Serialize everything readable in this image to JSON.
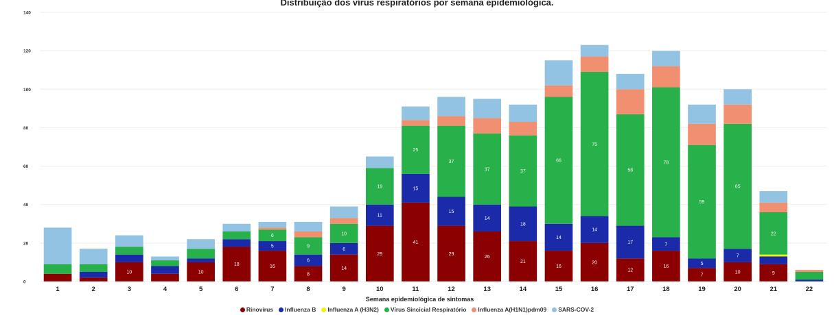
{
  "chart_data": {
    "type": "bar",
    "stacked": true,
    "title": "Distribuição dos vírus respiratórios por semana epidemiológica.",
    "xlabel": "Semana epidemiológica de sintomas",
    "ylabel": "",
    "ylim": [
      0,
      140
    ],
    "yticks": [
      0,
      20,
      40,
      60,
      80,
      100,
      120,
      140
    ],
    "categories": [
      "1",
      "2",
      "3",
      "4",
      "5",
      "6",
      "7",
      "8",
      "9",
      "10",
      "11",
      "12",
      "13",
      "14",
      "15",
      "16",
      "17",
      "18",
      "19",
      "20",
      "21",
      "22"
    ],
    "legend_position": "bottom",
    "series": [
      {
        "name": "Rinovírus",
        "color": "#8b0000",
        "values": [
          4,
          2,
          10,
          4,
          10,
          18,
          16,
          8,
          14,
          29,
          41,
          29,
          26,
          21,
          16,
          20,
          12,
          16,
          7,
          10,
          9,
          0
        ],
        "labels": [
          "",
          "",
          "10",
          "",
          "10",
          "18",
          "16",
          "8",
          "14",
          "29",
          "41",
          "29",
          "26",
          "21",
          "16",
          "20",
          "12",
          "16",
          "7",
          "10",
          "9",
          ""
        ]
      },
      {
        "name": "Influenza B",
        "color": "#1a2aa8",
        "values": [
          0,
          3,
          4,
          4,
          2,
          4,
          5,
          6,
          6,
          11,
          15,
          15,
          14,
          18,
          14,
          14,
          17,
          7,
          5,
          7,
          4,
          1
        ],
        "labels": [
          "",
          "",
          "",
          "",
          "",
          "",
          "5",
          "6",
          "6",
          "11",
          "15",
          "15",
          "14",
          "18",
          "14",
          "14",
          "17",
          "7",
          "5",
          "7",
          "",
          ""
        ]
      },
      {
        "name": "Influenza A (H3N2)",
        "color": "#f2f20a",
        "values": [
          0,
          0,
          0,
          0,
          0,
          0,
          0,
          0,
          0,
          0,
          0,
          0,
          0,
          0,
          0,
          0,
          0,
          0,
          0,
          0,
          1,
          0
        ],
        "labels": [
          "",
          "",
          "",
          "",
          "",
          "",
          "",
          "",
          "",
          "",
          "",
          "",
          "",
          "",
          "",
          "",
          "",
          "",
          "",
          "",
          "",
          ""
        ]
      },
      {
        "name": "Vírus Sincicial Respiratório",
        "color": "#28b04a",
        "values": [
          5,
          4,
          4,
          3,
          5,
          4,
          6,
          9,
          10,
          19,
          25,
          37,
          37,
          37,
          66,
          75,
          58,
          78,
          59,
          65,
          22,
          4
        ],
        "labels": [
          "",
          "",
          "",
          "",
          "",
          "",
          "6",
          "9",
          "10",
          "19",
          "25",
          "37",
          "37",
          "37",
          "66",
          "75",
          "58",
          "78",
          "59",
          "65",
          "22",
          ""
        ]
      },
      {
        "name": "Influenza A(H1N1)pdm09",
        "color": "#f09070",
        "values": [
          0,
          0,
          0,
          0,
          0,
          0,
          1,
          3,
          3,
          0,
          3,
          5,
          8,
          7,
          6,
          8,
          13,
          11,
          11,
          10,
          5,
          1
        ],
        "labels": [
          "",
          "",
          "",
          "",
          "",
          "",
          "",
          "",
          "",
          "",
          "",
          "",
          "",
          "",
          "",
          "",
          "",
          "",
          "",
          "",
          "",
          ""
        ]
      },
      {
        "name": "SARS-COV-2",
        "color": "#93c3e2",
        "values": [
          19,
          8,
          6,
          2,
          5,
          4,
          3,
          5,
          6,
          6,
          7,
          10,
          10,
          9,
          13,
          6,
          8,
          8,
          10,
          8,
          6,
          0
        ],
        "labels": [
          "",
          "",
          "",
          "",
          "",
          "",
          "",
          "",
          "",
          "",
          "",
          "",
          "",
          "",
          "",
          "",
          "",
          "",
          "",
          "",
          "",
          ""
        ]
      }
    ]
  }
}
